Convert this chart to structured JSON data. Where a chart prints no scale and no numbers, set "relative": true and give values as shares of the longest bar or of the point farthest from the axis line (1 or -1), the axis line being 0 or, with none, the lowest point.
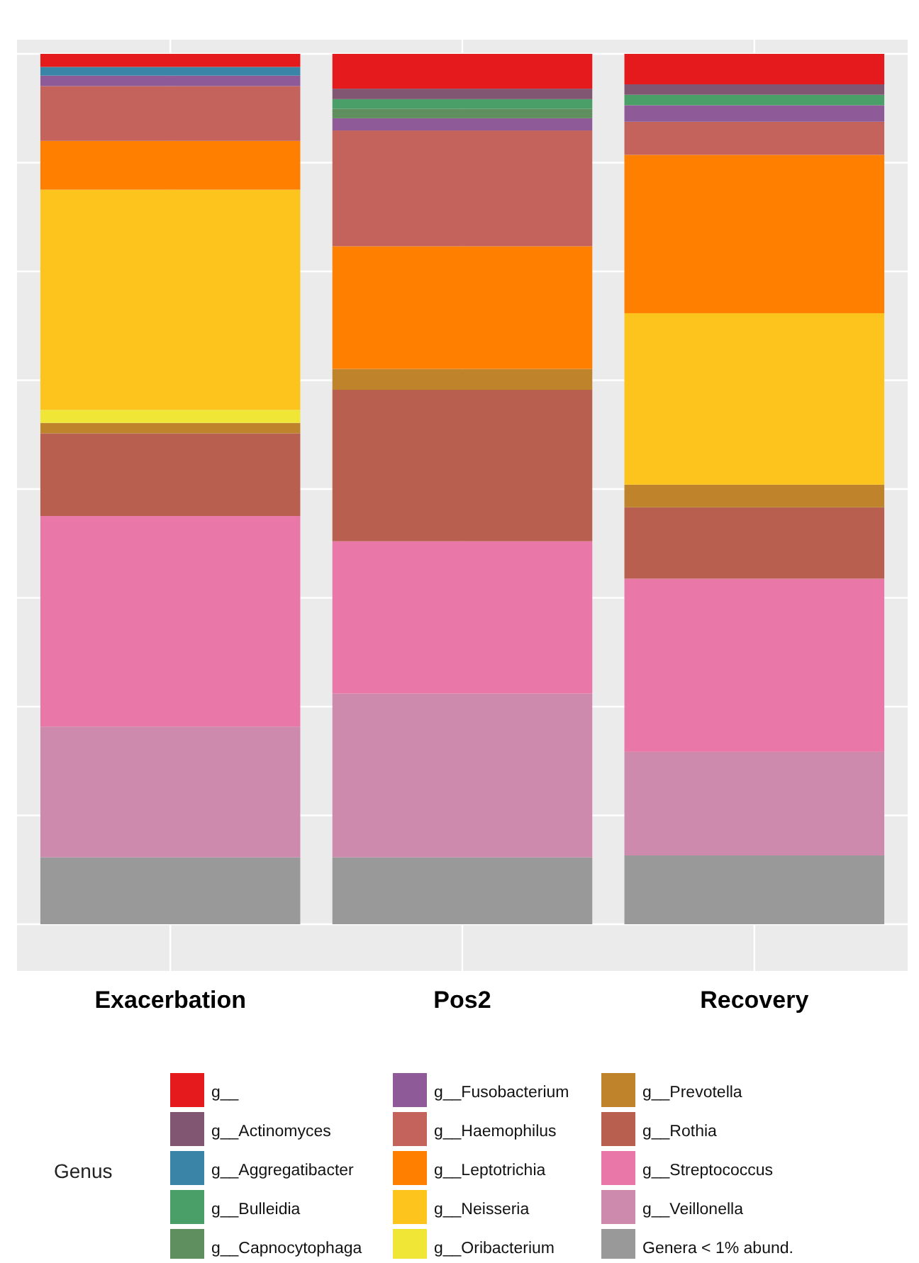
{
  "chart_data": {
    "type": "bar",
    "stacked": true,
    "relative": true,
    "grid": true,
    "legend": "bottom",
    "legend_title": "Genus",
    "categories": [
      "Exacerbation",
      "Pos2",
      "Recovery"
    ],
    "series": [
      {
        "name": "Genera < 1% abund.",
        "color": "#999999",
        "values": [
          0.077,
          0.077,
          0.079
        ]
      },
      {
        "name": "g__Veillonella",
        "color": "#cd8aad",
        "values": [
          0.15,
          0.188,
          0.119
        ]
      },
      {
        "name": "g__Streptococcus",
        "color": "#e978a8",
        "values": [
          0.242,
          0.175,
          0.199
        ]
      },
      {
        "name": "g__Rothia",
        "color": "#b95f50",
        "values": [
          0.095,
          0.174,
          0.082
        ]
      },
      {
        "name": "g__Prevotella",
        "color": "#be832b",
        "values": [
          0.012,
          0.024,
          0.026
        ]
      },
      {
        "name": "g__Oribacterium",
        "color": "#f0e636",
        "values": [
          0.015,
          0,
          0
        ]
      },
      {
        "name": "g__Neisseria",
        "color": "#fec41e",
        "values": [
          0.253,
          0,
          0.197
        ]
      },
      {
        "name": "g__Leptotrichia",
        "color": "#ff7f00",
        "values": [
          0.056,
          0.141,
          0.182
        ]
      },
      {
        "name": "g__Haemophilus",
        "color": "#c4625c",
        "values": [
          0.063,
          0.133,
          0.038
        ]
      },
      {
        "name": "g__Fusobacterium",
        "color": "#8e5a98",
        "values": [
          0.012,
          0.014,
          0.019
        ]
      },
      {
        "name": "g__Capnocytophaga",
        "color": "#5f8f5f",
        "values": [
          0,
          0.011,
          0
        ]
      },
      {
        "name": "g__Bulleidia",
        "color": "#4a9e68",
        "values": [
          0,
          0.011,
          0.012
        ]
      },
      {
        "name": "g__Aggregatibacter",
        "color": "#3a84a8",
        "values": [
          0.01,
          0,
          0
        ]
      },
      {
        "name": "g__Actinomyces",
        "color": "#815672",
        "values": [
          0,
          0.012,
          0.012
        ]
      },
      {
        "name": "g__",
        "color": "#e41a1c",
        "values": [
          0.015,
          0.04,
          0.035
        ]
      }
    ]
  }
}
